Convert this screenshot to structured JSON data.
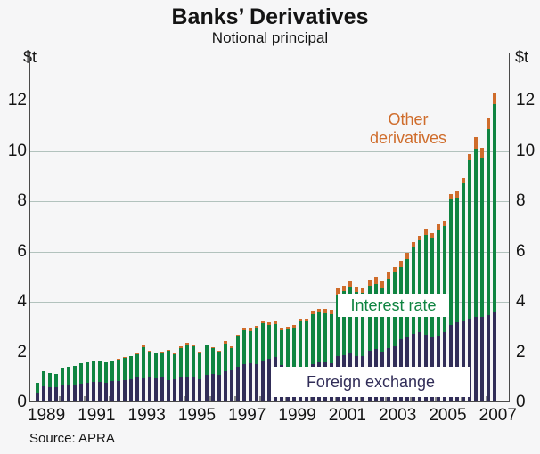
{
  "header": {
    "title": "Banks’ Derivatives",
    "subtitle": "Notional principal",
    "unit_left": "$t",
    "unit_right": "$t"
  },
  "source": "Source: APRA",
  "colors": {
    "foreign_exchange": "#312d58",
    "interest_rate": "#0f8441",
    "other_derivatives": "#cf6c2b",
    "gridline": "#b2c2bd",
    "frame": "#4a4a4a",
    "label_box_bg": "#ffffff",
    "text": "#141414"
  },
  "legend": {
    "other_derivatives_line1": "Other",
    "other_derivatives_line2": "derivatives",
    "interest_rate": "Interest rate",
    "foreign_exchange": "Foreign exchange"
  },
  "chart_data": {
    "type": "bar",
    "stacked": true,
    "title": "Banks’ Derivatives",
    "subtitle": "Notional principal",
    "ylabel": "$t",
    "ylim": [
      0,
      13.9
    ],
    "yticks": [
      0,
      2,
      4,
      6,
      8,
      10,
      12
    ],
    "grid": "horizontal",
    "x_frequency": "quarterly",
    "x_start": "1989Q1",
    "x_end": "2007Q2",
    "xtick_years": [
      "1989",
      "1991",
      "1993",
      "1995",
      "1997",
      "1999",
      "2001",
      "2003",
      "2005",
      "2007"
    ],
    "series": [
      {
        "name": "Foreign exchange",
        "color": "#312d58",
        "values": [
          0.35,
          0.6,
          0.55,
          0.57,
          0.63,
          0.65,
          0.68,
          0.72,
          0.75,
          0.78,
          0.77,
          0.75,
          0.8,
          0.82,
          0.85,
          0.9,
          0.95,
          0.92,
          0.95,
          0.92,
          0.95,
          0.85,
          0.87,
          0.94,
          0.97,
          0.96,
          0.89,
          1.07,
          1.1,
          1.07,
          1.19,
          1.25,
          1.37,
          1.5,
          1.52,
          1.48,
          1.62,
          1.7,
          1.76,
          1.44,
          1.33,
          1.32,
          1.38,
          1.36,
          1.48,
          1.55,
          1.56,
          1.51,
          1.79,
          1.85,
          1.93,
          1.79,
          1.8,
          2.02,
          2.08,
          1.97,
          2.14,
          2.2,
          2.48,
          2.55,
          2.7,
          2.75,
          2.67,
          2.55,
          2.6,
          2.75,
          3.05,
          3.15,
          3.2,
          3.28,
          3.35,
          3.38,
          3.45,
          3.55
        ]
      },
      {
        "name": "Interest rate",
        "color": "#0f8441",
        "values": [
          0.38,
          0.6,
          0.6,
          0.53,
          0.72,
          0.72,
          0.75,
          0.8,
          0.81,
          0.84,
          0.83,
          0.81,
          0.78,
          0.86,
          0.89,
          0.89,
          0.92,
          1.25,
          1.02,
          1.0,
          0.99,
          1.18,
          1.01,
          1.2,
          1.3,
          1.24,
          1.06,
          1.15,
          1.01,
          0.91,
          1.12,
          0.89,
          1.21,
          1.34,
          1.28,
          1.42,
          1.48,
          1.36,
          1.33,
          1.41,
          1.55,
          1.61,
          1.8,
          1.81,
          1.99,
          1.99,
          1.96,
          1.95,
          2.47,
          2.53,
          2.62,
          2.55,
          2.52,
          2.59,
          2.61,
          2.56,
          2.76,
          2.93,
          2.88,
          3.13,
          3.42,
          3.64,
          3.96,
          3.96,
          4.23,
          4.24,
          4.98,
          4.96,
          5.46,
          6.33,
          6.7,
          6.3,
          7.38,
          8.28
        ]
      },
      {
        "name": "Other derivatives",
        "color": "#cf6c2b",
        "values": [
          0,
          0,
          0,
          0,
          0,
          0,
          0,
          0,
          0,
          0,
          0,
          0,
          0.02,
          0.02,
          0.02,
          0.03,
          0.03,
          0.05,
          0.04,
          0.03,
          0.04,
          0.04,
          0.03,
          0.05,
          0.06,
          0.05,
          0.04,
          0.05,
          0.05,
          0.04,
          0.09,
          0.05,
          0.09,
          0.08,
          0.09,
          0.1,
          0.1,
          0.1,
          0.08,
          0.08,
          0.09,
          0.1,
          0.12,
          0.11,
          0.15,
          0.16,
          0.17,
          0.17,
          0.23,
          0.23,
          0.23,
          0.21,
          0.17,
          0.23,
          0.26,
          0.25,
          0.23,
          0.23,
          0.24,
          0.24,
          0.21,
          0.18,
          0.23,
          0.19,
          0.22,
          0.21,
          0.22,
          0.24,
          0.24,
          0.24,
          0.45,
          0.42,
          0.45,
          0.45
        ]
      }
    ]
  }
}
